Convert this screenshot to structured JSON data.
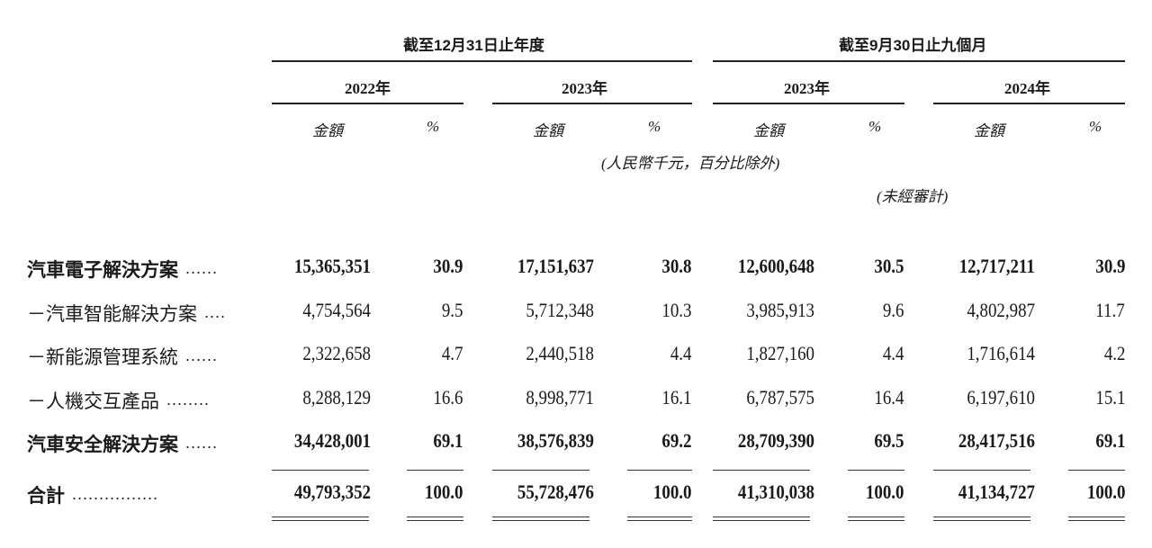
{
  "header": {
    "period_year": "截至12月31日止年度",
    "period_nine": "截至9月30日止九個月",
    "years": [
      "2022年",
      "2023年",
      "2023年",
      "2024年"
    ],
    "amount_label": "金額",
    "pct_label": "%",
    "unit_note": "(人民幣千元，百分比除外)",
    "unaudited_note": "(未經審計)"
  },
  "rows": [
    {
      "label": "汽車電子解決方案",
      "dots": "......",
      "bold": true,
      "values": [
        "15,365,351",
        "30.9",
        "17,151,637",
        "30.8",
        "12,600,648",
        "30.5",
        "12,717,211",
        "30.9"
      ]
    },
    {
      "label": "－汽車智能解決方案",
      "dots": "....",
      "bold": false,
      "values": [
        "4,754,564",
        "9.5",
        "5,712,348",
        "10.3",
        "3,985,913",
        "9.6",
        "4,802,987",
        "11.7"
      ]
    },
    {
      "label": "－新能源管理系統",
      "dots": "......",
      "bold": false,
      "values": [
        "2,322,658",
        "4.7",
        "2,440,518",
        "4.4",
        "1,827,160",
        "4.4",
        "1,716,614",
        "4.2"
      ]
    },
    {
      "label": "－人機交互產品",
      "dots": "........",
      "bold": false,
      "values": [
        "8,288,129",
        "16.6",
        "8,998,771",
        "16.1",
        "6,787,575",
        "16.4",
        "6,197,610",
        "15.1"
      ]
    },
    {
      "label": "汽車安全解決方案",
      "dots": "......",
      "bold": true,
      "values": [
        "34,428,001",
        "69.1",
        "38,576,839",
        "69.2",
        "28,709,390",
        "69.5",
        "28,417,516",
        "69.1"
      ]
    },
    {
      "label": "合計",
      "dots": "................",
      "bold": true,
      "values": [
        "49,793,352",
        "100.0",
        "55,728,476",
        "100.0",
        "41,310,038",
        "100.0",
        "41,134,727",
        "100.0"
      ]
    }
  ]
}
